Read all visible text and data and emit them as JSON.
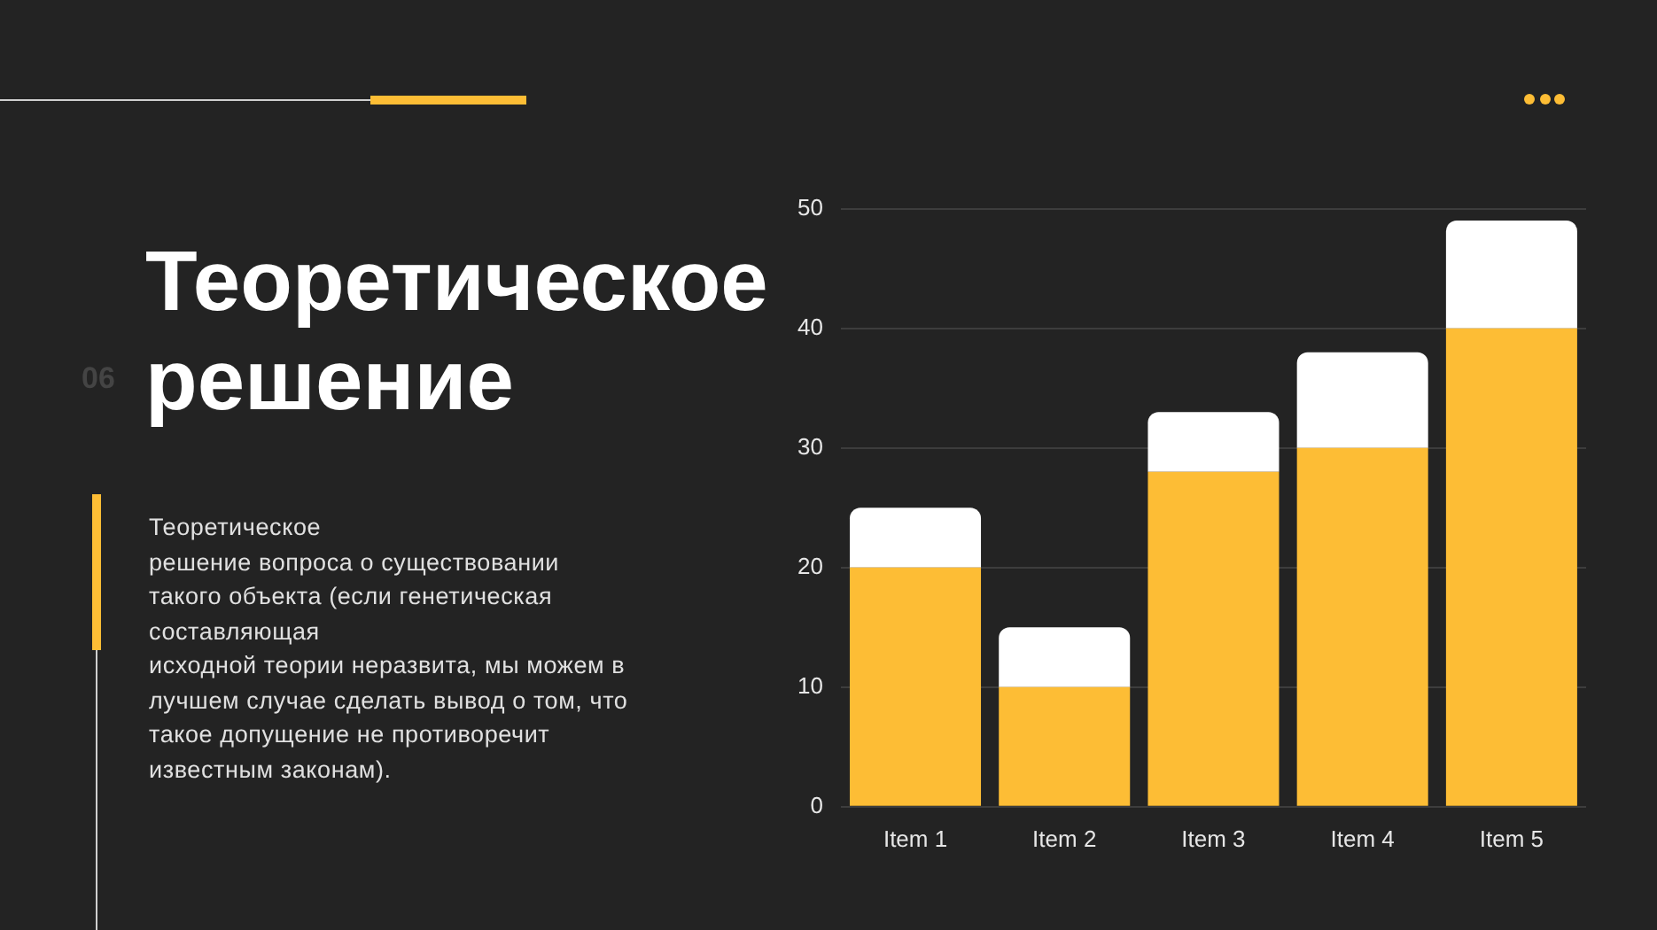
{
  "chart_data": {
    "type": "bar",
    "title": "Теоретическое\nрешение",
    "annotations": [
      "06",
      "Теоретическое\nрешение вопроса о существовании\nтакого объекта (если генетическая\nсоставляющая\nисходной теории неразвита, мы можем в\nлучшем случае сделать вывод о том, что\nтакое допущение не противоречит\nизвестным законам)."
    ],
    "categories": [
      "Item 1",
      "Item 2",
      "Item 3",
      "Item 4",
      "Item 5"
    ],
    "stacked": true,
    "series": [
      {
        "color": "#fdbd35",
        "values": [
          20,
          10,
          28,
          30,
          40
        ]
      },
      {
        "color": "#ffffff",
        "values": [
          5,
          5,
          5,
          8,
          9
        ]
      }
    ],
    "ylim": [
      0,
      50
    ],
    "yticks": [
      0,
      10,
      20,
      30,
      40,
      50
    ],
    "grid": "y",
    "legend": false
  }
}
